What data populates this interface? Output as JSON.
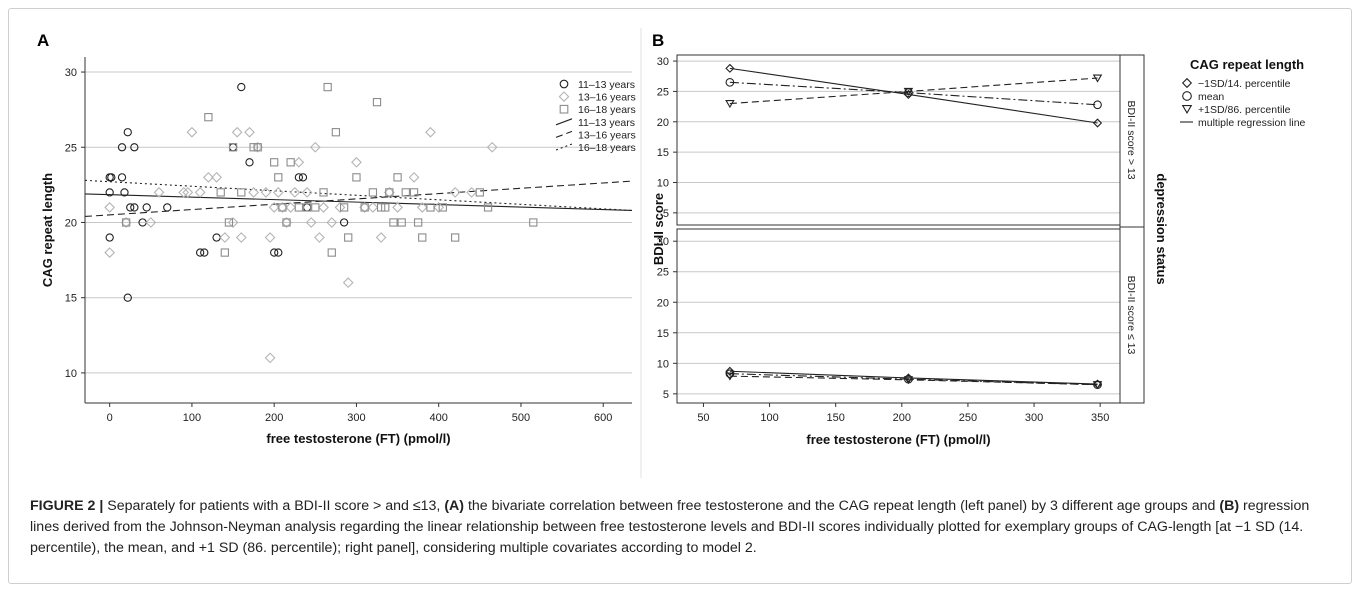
{
  "panel_a_label": "A",
  "panel_b_label": "B",
  "caption": {
    "figure_label": "FIGURE 2 |",
    "part1": " Separately for patients with a BDI-II score > and ≤13, ",
    "tag_a": "(A)",
    "part2": " the bivariate correlation between free testosterone and the CAG repeat length (left panel) by 3 different age groups and ",
    "tag_b": "(B)",
    "part3": " regression lines derived from the Johnson-Neyman analysis regarding the linear relationship between free testosterone levels and BDI-II scores individually plotted for exemplary groups of CAG-length [at −1 SD (14. percentile), the mean, and +1 SD (86. percentile); right panel], considering multiple covariates according to model 2."
  },
  "colors": {
    "group_11_13": "#222222",
    "group_13_16": "#b4b4b4",
    "group_16_18": "#8c8c8c",
    "grid": "#c8c8c8"
  },
  "chart_data": [
    {
      "type": "scatter",
      "xlabel": "free testosterone (FT) (pmol/l)",
      "ylabel": "CAG repeat length",
      "xlim": [
        -30,
        635
      ],
      "ylim": [
        8,
        31
      ],
      "xticks": [
        0,
        100,
        200,
        300,
        400,
        500,
        600
      ],
      "yticks": [
        10,
        15,
        20,
        25,
        30
      ],
      "grid": "horizontal",
      "legend_position": "right",
      "legend": [
        "11–13 years",
        "13–16 years",
        "16–18 years",
        "11–13 years",
        "13–16 years",
        "16–18 years"
      ],
      "series": [
        {
          "name": "11–13 years",
          "marker": "circle",
          "points": [
            [
              0,
              23
            ],
            [
              2,
              23
            ],
            [
              0,
              22
            ],
            [
              0,
              19
            ],
            [
              15,
              23
            ],
            [
              18,
              22
            ],
            [
              15,
              25
            ],
            [
              22,
              26
            ],
            [
              30,
              25
            ],
            [
              25,
              21
            ],
            [
              40,
              20
            ],
            [
              45,
              21
            ],
            [
              30,
              21
            ],
            [
              70,
              21
            ],
            [
              110,
              18
            ],
            [
              115,
              18
            ],
            [
              130,
              19
            ],
            [
              150,
              25
            ],
            [
              160,
              29
            ],
            [
              170,
              24
            ],
            [
              200,
              18
            ],
            [
              205,
              18
            ],
            [
              230,
              23
            ],
            [
              235,
              23
            ],
            [
              240,
              21
            ],
            [
              285,
              20
            ],
            [
              22,
              15
            ]
          ]
        },
        {
          "name": "13–16 years",
          "marker": "diamond",
          "points": [
            [
              0,
              18
            ],
            [
              0,
              21
            ],
            [
              20,
              20
            ],
            [
              50,
              20
            ],
            [
              60,
              22
            ],
            [
              90,
              22
            ],
            [
              95,
              22
            ],
            [
              100,
              26
            ],
            [
              110,
              22
            ],
            [
              120,
              23
            ],
            [
              130,
              23
            ],
            [
              140,
              19
            ],
            [
              150,
              20
            ],
            [
              155,
              26
            ],
            [
              160,
              19
            ],
            [
              170,
              26
            ],
            [
              175,
              22
            ],
            [
              180,
              25
            ],
            [
              190,
              22
            ],
            [
              195,
              19
            ],
            [
              200,
              21
            ],
            [
              205,
              22
            ],
            [
              210,
              21
            ],
            [
              215,
              20
            ],
            [
              220,
              21
            ],
            [
              225,
              22
            ],
            [
              230,
              24
            ],
            [
              240,
              22
            ],
            [
              245,
              20
            ],
            [
              250,
              25
            ],
            [
              255,
              19
            ],
            [
              260,
              21
            ],
            [
              270,
              20
            ],
            [
              280,
              21
            ],
            [
              290,
              16
            ],
            [
              300,
              24
            ],
            [
              310,
              21
            ],
            [
              320,
              21
            ],
            [
              330,
              19
            ],
            [
              340,
              22
            ],
            [
              350,
              21
            ],
            [
              370,
              23
            ],
            [
              380,
              21
            ],
            [
              390,
              26
            ],
            [
              400,
              21
            ],
            [
              420,
              22
            ],
            [
              440,
              22
            ],
            [
              465,
              25
            ],
            [
              195,
              11
            ]
          ]
        },
        {
          "name": "16–18 years",
          "marker": "square",
          "points": [
            [
              20,
              20
            ],
            [
              120,
              27
            ],
            [
              135,
              22
            ],
            [
              140,
              18
            ],
            [
              145,
              20
            ],
            [
              150,
              25
            ],
            [
              160,
              22
            ],
            [
              175,
              25
            ],
            [
              180,
              25
            ],
            [
              200,
              24
            ],
            [
              205,
              23
            ],
            [
              210,
              21
            ],
            [
              215,
              20
            ],
            [
              220,
              24
            ],
            [
              230,
              21
            ],
            [
              240,
              21
            ],
            [
              250,
              21
            ],
            [
              260,
              22
            ],
            [
              265,
              29
            ],
            [
              270,
              18
            ],
            [
              275,
              26
            ],
            [
              285,
              21
            ],
            [
              290,
              19
            ],
            [
              300,
              23
            ],
            [
              310,
              21
            ],
            [
              320,
              22
            ],
            [
              325,
              28
            ],
            [
              330,
              21
            ],
            [
              335,
              21
            ],
            [
              340,
              22
            ],
            [
              345,
              20
            ],
            [
              350,
              23
            ],
            [
              355,
              20
            ],
            [
              360,
              22
            ],
            [
              370,
              22
            ],
            [
              375,
              20
            ],
            [
              380,
              19
            ],
            [
              390,
              21
            ],
            [
              405,
              21
            ],
            [
              420,
              19
            ],
            [
              450,
              22
            ],
            [
              460,
              21
            ],
            [
              515,
              20
            ]
          ]
        }
      ],
      "regression_lines": [
        {
          "name": "11–13 years",
          "style": "solid",
          "x": [
            -30,
            635
          ],
          "y": [
            21.9,
            20.8
          ]
        },
        {
          "name": "13–16 years",
          "style": "dashed",
          "x": [
            -30,
            635
          ],
          "y": [
            20.4,
            22.75
          ]
        },
        {
          "name": "16–18 years",
          "style": "dotted",
          "x": [
            -30,
            635
          ],
          "y": [
            22.8,
            20.8
          ]
        }
      ]
    },
    {
      "type": "line",
      "xlabel": "free testosterone (FT) (pmol/l)",
      "ylabel": "BDI-II score",
      "facet_label": "depression status",
      "xlim": [
        30,
        365
      ],
      "xticks": [
        50,
        100,
        150,
        200,
        250,
        300,
        350
      ],
      "yticks": [
        5,
        10,
        15,
        20,
        25,
        30
      ],
      "grid": "horizontal",
      "legend_position": "right",
      "legend_title": "CAG repeat length",
      "legend": [
        "−1SD/14. percentile",
        "mean",
        "+1SD/86. percentile",
        "multiple regression line"
      ],
      "facets": [
        {
          "label": "BDI-II score > 13",
          "ylim": [
            3,
            31
          ],
          "series": [
            {
              "name": "−1SD/14. percentile",
              "marker": "diamond",
              "line": "solid",
              "x": [
                70,
                205,
                348
              ],
              "y": [
                28.8,
                24.5,
                19.8
              ]
            },
            {
              "name": "mean",
              "marker": "circle",
              "line": "dashdot",
              "x": [
                70,
                205,
                348
              ],
              "y": [
                26.5,
                24.8,
                22.8
              ]
            },
            {
              "name": "+1SD/86. percentile",
              "marker": "triangle-down",
              "line": "dashed",
              "x": [
                70,
                205,
                348
              ],
              "y": [
                23.0,
                25.0,
                27.2
              ]
            }
          ]
        },
        {
          "label": "BDI-II score ≤ 13",
          "ylim": [
            3.5,
            32
          ],
          "series": [
            {
              "name": "−1SD/14. percentile",
              "marker": "diamond",
              "line": "solid",
              "x": [
                70,
                205,
                348
              ],
              "y": [
                8.7,
                7.6,
                6.6
              ]
            },
            {
              "name": "mean",
              "marker": "circle",
              "line": "dashdot",
              "x": [
                70,
                205,
                348
              ],
              "y": [
                8.3,
                7.4,
                6.5
              ]
            },
            {
              "name": "+1SD/86. percentile",
              "marker": "triangle-down",
              "line": "dashed",
              "x": [
                70,
                205,
                348
              ],
              "y": [
                7.9,
                7.3,
                6.5
              ]
            }
          ]
        }
      ]
    }
  ]
}
